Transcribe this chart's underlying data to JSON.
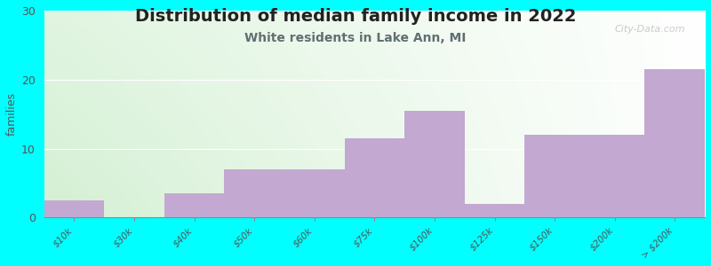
{
  "title": "Distribution of median family income in 2022",
  "subtitle": "White residents in Lake Ann, MI",
  "ylabel": "families",
  "background_color": "#00FFFF",
  "bar_color": "#C3A8D1",
  "categories": [
    "$10k",
    "$30k",
    "$40k",
    "$50k",
    "$60k",
    "$75k",
    "$100k",
    "$125k",
    "$150k",
    "$200k",
    "> $200k"
  ],
  "values": [
    2.5,
    0,
    3.5,
    7,
    7,
    11.5,
    15.5,
    2,
    12,
    12,
    21.5
  ],
  "ylim": [
    0,
    30
  ],
  "yticks": [
    0,
    10,
    20,
    30
  ],
  "title_fontsize": 14,
  "subtitle_fontsize": 10,
  "subtitle_color": "#607070",
  "watermark": "City-Data.com",
  "plot_bg_color_topleft": "#D8EDD0",
  "plot_bg_color_topright": "#F0F8F0",
  "plot_bg_color_bottomleft": "#D8EDD0",
  "plot_bg_color_bottomright": "#FFFFFF"
}
